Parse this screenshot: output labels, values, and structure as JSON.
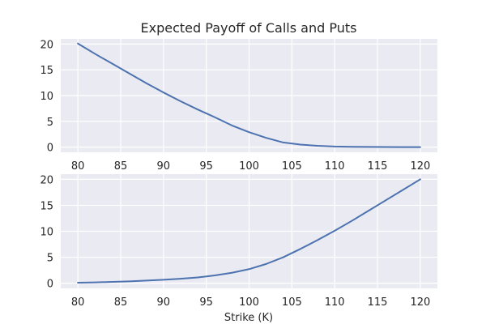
{
  "chart_data": {
    "type": "line",
    "title": "Expected Payoff of Calls and Puts",
    "xlabel": "Strike (K)",
    "grid": true,
    "panels": [
      {
        "series_color": "#4c72b0",
        "xlim": [
          78,
          122
        ],
        "ylim": [
          -1,
          21
        ],
        "xticks": [
          80,
          85,
          90,
          95,
          100,
          105,
          110,
          115,
          120
        ],
        "yticks": [
          0,
          5,
          10,
          15,
          20
        ],
        "x": [
          80,
          82,
          84,
          86,
          88,
          90,
          92,
          94,
          96,
          98,
          100,
          102,
          104,
          106,
          108,
          110,
          112,
          114,
          116,
          118,
          120
        ],
        "y": [
          20.1,
          18.1,
          16.2,
          14.3,
          12.4,
          10.6,
          8.9,
          7.3,
          5.8,
          4.2,
          2.9,
          1.8,
          0.9,
          0.5,
          0.25,
          0.12,
          0.07,
          0.04,
          0.02,
          0.01,
          0.01
        ]
      },
      {
        "series_color": "#4c72b0",
        "xlim": [
          78,
          122
        ],
        "ylim": [
          -1,
          21
        ],
        "xticks": [
          80,
          85,
          90,
          95,
          100,
          105,
          110,
          115,
          120
        ],
        "yticks": [
          0,
          5,
          10,
          15,
          20
        ],
        "x": [
          80,
          82,
          84,
          86,
          88,
          90,
          92,
          94,
          96,
          98,
          100,
          102,
          104,
          106,
          108,
          110,
          112,
          114,
          116,
          118,
          120
        ],
        "y": [
          0.1,
          0.15,
          0.25,
          0.35,
          0.5,
          0.65,
          0.85,
          1.1,
          1.5,
          2.0,
          2.7,
          3.7,
          5.0,
          6.6,
          8.3,
          10.1,
          12.0,
          14.0,
          16.0,
          18.0,
          20.0
        ]
      }
    ]
  }
}
